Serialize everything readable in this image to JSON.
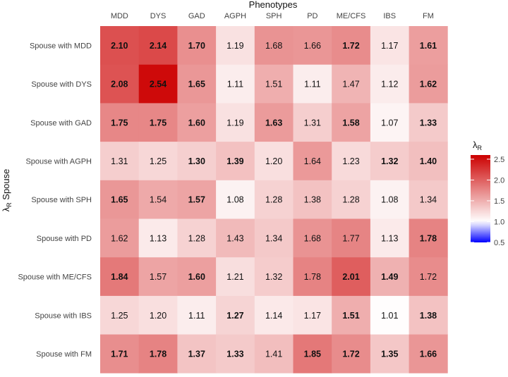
{
  "chart_data": {
    "type": "heatmap",
    "title": "Phenotypes",
    "xlabel": "Phenotypes",
    "ylabel": "λR Spouse",
    "ylabel_main": "λ",
    "ylabel_sub": "R",
    "ylabel_rest": " Spouse",
    "x_categories": [
      "MDD",
      "DYS",
      "GAD",
      "AGPH",
      "SPH",
      "PD",
      "ME/CFS",
      "IBS",
      "FM"
    ],
    "y_categories": [
      "Spouse with MDD",
      "Spouse with DYS",
      "Spouse with GAD",
      "Spouse with AGPH",
      "Spouse with SPH",
      "Spouse with PD",
      "Spouse with ME/CFS",
      "Spouse with IBS",
      "Spouse with FM"
    ],
    "values": [
      [
        2.1,
        2.14,
        1.7,
        1.19,
        1.68,
        1.66,
        1.72,
        1.17,
        1.61
      ],
      [
        2.08,
        2.54,
        1.65,
        1.11,
        1.51,
        1.11,
        1.47,
        1.12,
        1.62
      ],
      [
        1.75,
        1.75,
        1.6,
        1.19,
        1.63,
        1.31,
        1.58,
        1.07,
        1.33
      ],
      [
        1.31,
        1.25,
        1.3,
        1.39,
        1.2,
        1.64,
        1.23,
        1.32,
        1.4
      ],
      [
        1.65,
        1.54,
        1.57,
        1.08,
        1.28,
        1.38,
        1.28,
        1.08,
        1.34
      ],
      [
        1.62,
        1.13,
        1.28,
        1.43,
        1.34,
        1.68,
        1.77,
        1.13,
        1.78
      ],
      [
        1.84,
        1.57,
        1.6,
        1.21,
        1.32,
        1.78,
        2.01,
        1.49,
        1.72
      ],
      [
        1.25,
        1.2,
        1.11,
        1.27,
        1.14,
        1.17,
        1.51,
        1.01,
        1.38
      ],
      [
        1.71,
        1.78,
        1.37,
        1.33,
        1.41,
        1.85,
        1.72,
        1.35,
        1.66
      ]
    ],
    "labels": [
      [
        "2.10",
        "2.14",
        "1.70",
        "1.19",
        "1.68",
        "1.66",
        "1.72",
        "1.17",
        "1.61"
      ],
      [
        "2.08",
        "2.54",
        "1.65",
        "1.11",
        "1.51",
        "1.11",
        "1.47",
        "1.12",
        "1.62"
      ],
      [
        "1.75",
        "1.75",
        "1.60",
        "1.19",
        "1.63",
        "1.31",
        "1.58",
        "1.07",
        "1.33"
      ],
      [
        "1.31",
        "1.25",
        "1.30",
        "1.39",
        "1.20",
        "1.64",
        "1.23",
        "1.32",
        "1.40"
      ],
      [
        "1.65",
        "1.54",
        "1.57",
        "1.08",
        "1.28",
        "1.38",
        "1.28",
        "1.08",
        "1.34"
      ],
      [
        "1.62",
        "1.13",
        "1.28",
        "1.43",
        "1.34",
        "1.68",
        "1.77",
        "1.13",
        "1.78"
      ],
      [
        "1.84",
        "1.57",
        "1.60",
        "1.21",
        "1.32",
        "1.78",
        "2.01",
        "1.49",
        "1.72"
      ],
      [
        "1.25",
        "1.20",
        "1.11",
        "1.27",
        "1.14",
        "1.17",
        "1.51",
        "1.01",
        "1.38"
      ],
      [
        "1.71",
        "1.78",
        "1.37",
        "1.33",
        "1.41",
        "1.85",
        "1.72",
        "1.35",
        "1.66"
      ]
    ],
    "bold": [
      [
        true,
        true,
        true,
        false,
        false,
        false,
        true,
        false,
        true
      ],
      [
        true,
        true,
        true,
        false,
        false,
        false,
        false,
        false,
        true
      ],
      [
        true,
        true,
        true,
        false,
        true,
        false,
        true,
        false,
        true
      ],
      [
        false,
        false,
        true,
        true,
        false,
        false,
        false,
        true,
        true
      ],
      [
        true,
        false,
        true,
        false,
        false,
        false,
        false,
        false,
        false
      ],
      [
        false,
        false,
        false,
        false,
        false,
        false,
        false,
        false,
        true
      ],
      [
        true,
        false,
        true,
        false,
        false,
        false,
        true,
        true,
        false
      ],
      [
        false,
        false,
        false,
        true,
        false,
        false,
        true,
        false,
        true
      ],
      [
        true,
        true,
        true,
        true,
        false,
        true,
        true,
        true,
        true
      ]
    ],
    "legend": {
      "title_main": "λ",
      "title_sub": "R",
      "range": [
        0.5,
        2.6
      ],
      "midpoint": 1.0,
      "ticks": [
        0.5,
        1.0,
        1.5,
        2.0,
        2.5
      ],
      "tick_labels": [
        "0.5",
        "1.0",
        "1.5",
        "2.0",
        "2.5"
      ],
      "low_color": "#0000ff",
      "mid_color": "#ffffff",
      "high_color": "#cc0000",
      "position": "right"
    },
    "grid": false,
    "background": "#ffffff"
  }
}
